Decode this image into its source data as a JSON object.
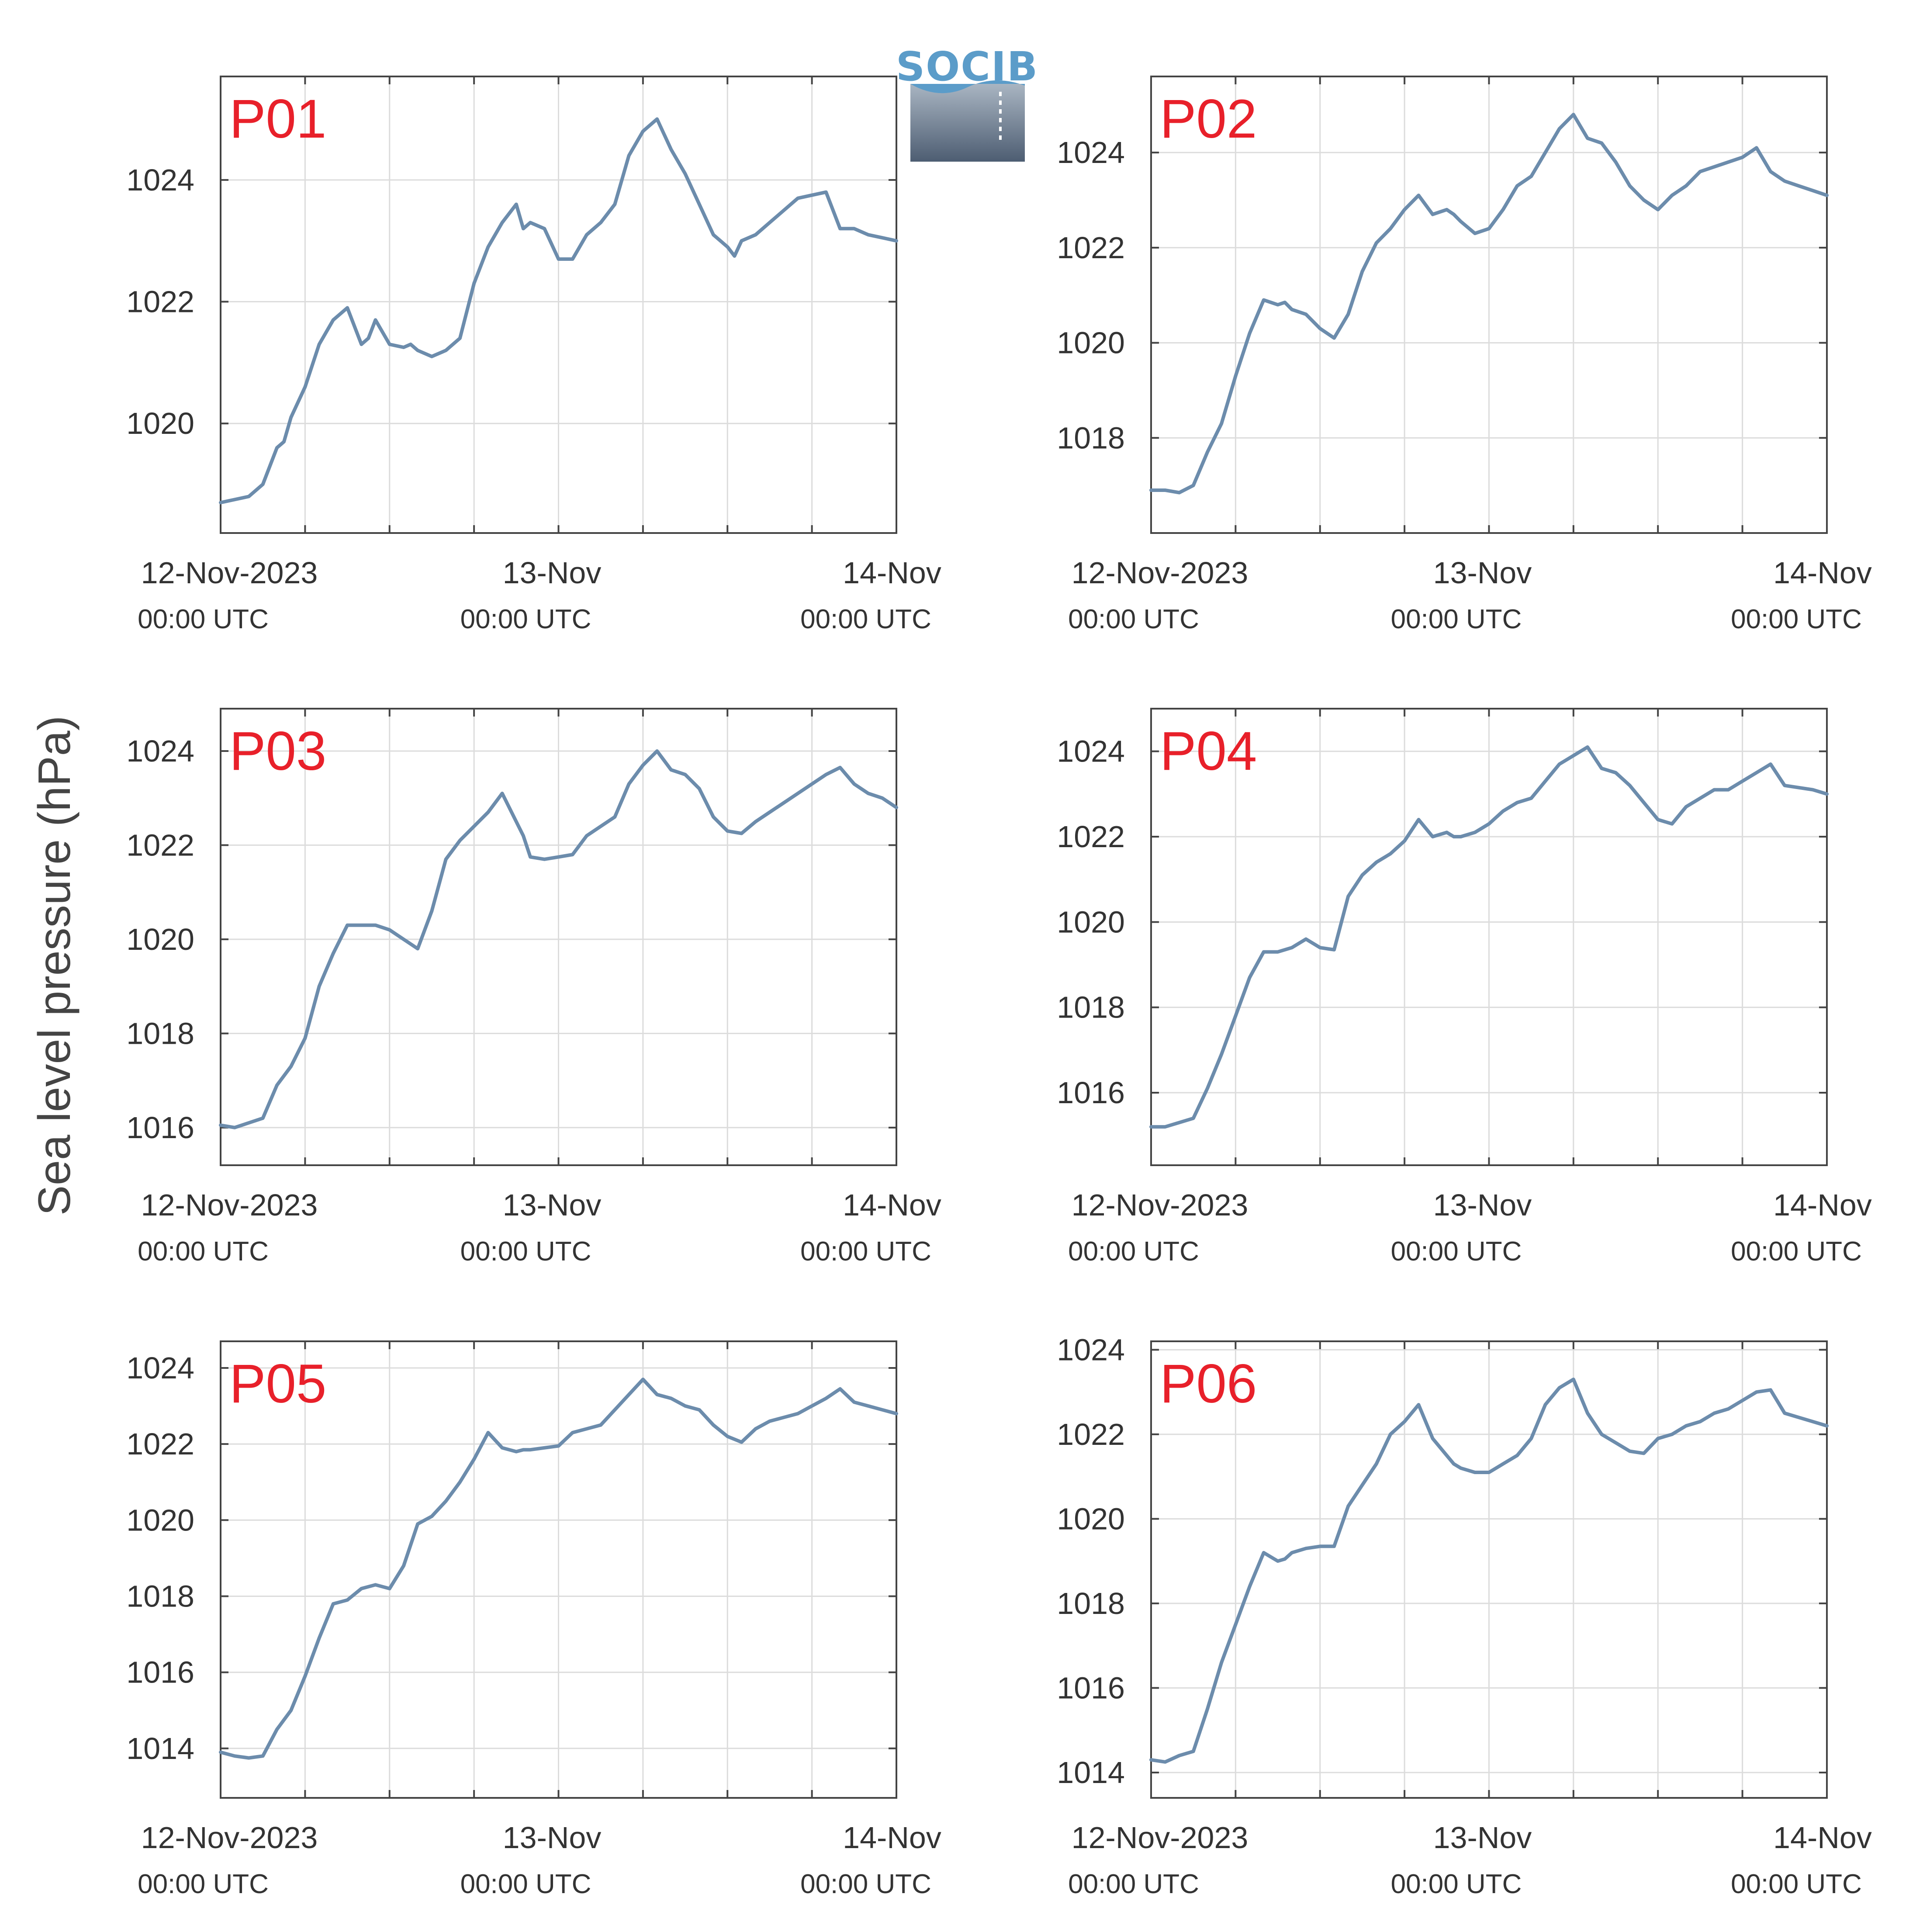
{
  "figure": {
    "ylabel": "Sea level pressure (hPa)",
    "logo": "SOCIB",
    "colors": {
      "line": "#6c8cac",
      "panel_label": "#e8202a",
      "grid": "#dcdcdc",
      "axis": "#444444",
      "text": "#333333"
    },
    "x_ticks": [
      {
        "date": "12-Nov-2023",
        "time": "00:00 UTC"
      },
      {
        "date": "13-Nov",
        "time": "00:00 UTC"
      },
      {
        "date": "14-Nov",
        "time": "00:00 UTC"
      }
    ]
  },
  "chart_data": [
    {
      "type": "line",
      "title": "P01",
      "xlabel": "",
      "ylabel": "Sea level pressure (hPa)",
      "x_unit": "hours since 12-Nov-2023 00:00 UTC",
      "xlim": [
        0,
        48
      ],
      "ylim": [
        1018.2,
        1025.7
      ],
      "yticks": [
        1020,
        1022,
        1024
      ],
      "grid": true,
      "series": [
        {
          "x": [
            0,
            1,
            2,
            3,
            4,
            4.5,
            5,
            6,
            7,
            8,
            9,
            10,
            10.5,
            11,
            12,
            13,
            13.5,
            14,
            15,
            16,
            17,
            18,
            19,
            20,
            21,
            21.5,
            22,
            23,
            24,
            25,
            26,
            27,
            28,
            29,
            30,
            31,
            32,
            33,
            34,
            35,
            36,
            36.5,
            37,
            38,
            39,
            40,
            41,
            42,
            43,
            44,
            45,
            46,
            47,
            48
          ],
          "y": [
            1018.7,
            1018.75,
            1018.8,
            1019.0,
            1019.6,
            1019.7,
            1020.1,
            1020.6,
            1021.3,
            1021.7,
            1021.9,
            1021.3,
            1021.4,
            1021.7,
            1021.3,
            1021.25,
            1021.3,
            1021.2,
            1021.1,
            1021.2,
            1021.4,
            1022.3,
            1022.9,
            1023.3,
            1023.6,
            1023.2,
            1023.3,
            1023.2,
            1022.7,
            1022.7,
            1023.1,
            1023.3,
            1023.6,
            1024.4,
            1024.8,
            1025.0,
            1024.5,
            1024.1,
            1023.6,
            1023.1,
            1022.9,
            1022.75,
            1023.0,
            1023.1,
            1023.3,
            1023.5,
            1023.7,
            1023.75,
            1023.8,
            1023.2,
            1023.2,
            1023.1,
            1023.05,
            1023.0
          ]
        }
      ]
    },
    {
      "type": "line",
      "title": "P02",
      "xlabel": "",
      "ylabel": "Sea level pressure (hPa)",
      "x_unit": "hours since 12-Nov-2023 00:00 UTC",
      "xlim": [
        0,
        48
      ],
      "ylim": [
        1016.0,
        1025.6
      ],
      "yticks": [
        1018,
        1020,
        1022,
        1024
      ],
      "grid": true,
      "series": [
        {
          "x": [
            0,
            1,
            2,
            3,
            4,
            5,
            6,
            7,
            8,
            9,
            9.5,
            10,
            11,
            12,
            13,
            14,
            15,
            15.5,
            16,
            17,
            18,
            19,
            20,
            21,
            21.5,
            22,
            23,
            24,
            25,
            26,
            27,
            28,
            29,
            30,
            31,
            32,
            33,
            34,
            35,
            36,
            37,
            38,
            39,
            40,
            41,
            42,
            43,
            44,
            45,
            46,
            47,
            48
          ],
          "y": [
            1016.9,
            1016.9,
            1016.85,
            1017.0,
            1017.7,
            1018.3,
            1019.3,
            1020.2,
            1020.9,
            1020.8,
            1020.85,
            1020.7,
            1020.6,
            1020.3,
            1020.1,
            1020.6,
            1021.5,
            1021.8,
            1022.1,
            1022.4,
            1022.8,
            1023.1,
            1022.7,
            1022.8,
            1022.7,
            1022.55,
            1022.3,
            1022.4,
            1022.8,
            1023.3,
            1023.5,
            1024.0,
            1024.5,
            1024.8,
            1024.3,
            1024.2,
            1023.8,
            1023.3,
            1023.0,
            1022.8,
            1023.1,
            1023.3,
            1023.6,
            1023.7,
            1023.8,
            1023.9,
            1024.1,
            1023.6,
            1023.4,
            1023.3,
            1023.2,
            1023.1
          ]
        }
      ]
    },
    {
      "type": "line",
      "title": "P03",
      "xlabel": "",
      "ylabel": "Sea level pressure (hPa)",
      "x_unit": "hours since 12-Nov-2023 00:00 UTC",
      "xlim": [
        0,
        48
      ],
      "ylim": [
        1015.2,
        1024.9
      ],
      "yticks": [
        1016,
        1018,
        1020,
        1022,
        1024
      ],
      "grid": true,
      "series": [
        {
          "x": [
            0,
            1,
            2,
            3,
            4,
            5,
            6,
            7,
            8,
            9,
            10,
            11,
            12,
            13,
            14,
            15,
            16,
            17,
            18,
            19,
            20,
            21,
            21.5,
            22,
            23,
            24,
            25,
            26,
            27,
            28,
            29,
            30,
            31,
            32,
            33,
            34,
            35,
            36,
            37,
            38,
            39,
            40,
            41,
            42,
            43,
            44,
            45,
            46,
            47,
            48
          ],
          "y": [
            1016.05,
            1016.0,
            1016.1,
            1016.2,
            1016.9,
            1017.3,
            1017.9,
            1019.0,
            1019.7,
            1020.3,
            1020.3,
            1020.3,
            1020.2,
            1020.0,
            1019.8,
            1020.6,
            1021.7,
            1022.1,
            1022.4,
            1022.7,
            1023.1,
            1022.5,
            1022.2,
            1021.75,
            1021.7,
            1021.75,
            1021.8,
            1022.2,
            1022.4,
            1022.6,
            1023.3,
            1023.7,
            1024.0,
            1023.6,
            1023.5,
            1023.2,
            1022.6,
            1022.3,
            1022.25,
            1022.5,
            1022.7,
            1022.9,
            1023.1,
            1023.3,
            1023.5,
            1023.65,
            1023.3,
            1023.1,
            1023.0,
            1022.8
          ]
        }
      ]
    },
    {
      "type": "line",
      "title": "P04",
      "xlabel": "",
      "ylabel": "Sea level pressure (hPa)",
      "x_unit": "hours since 12-Nov-2023 00:00 UTC",
      "xlim": [
        0,
        48
      ],
      "ylim": [
        1014.3,
        1025.0
      ],
      "yticks": [
        1016,
        1018,
        1020,
        1022,
        1024
      ],
      "grid": true,
      "series": [
        {
          "x": [
            0,
            1,
            2,
            3,
            4,
            5,
            6,
            7,
            8,
            9,
            10,
            11,
            12,
            13,
            14,
            15,
            16,
            17,
            18,
            19,
            20,
            21,
            21.5,
            22,
            23,
            24,
            25,
            26,
            27,
            28,
            29,
            30,
            31,
            32,
            33,
            34,
            35,
            36,
            37,
            38,
            39,
            40,
            41,
            42,
            43,
            44,
            45,
            46,
            47,
            48
          ],
          "y": [
            1015.2,
            1015.2,
            1015.3,
            1015.4,
            1016.1,
            1016.9,
            1017.8,
            1018.7,
            1019.3,
            1019.3,
            1019.4,
            1019.6,
            1019.4,
            1019.35,
            1020.6,
            1021.1,
            1021.4,
            1021.6,
            1021.9,
            1022.4,
            1022.0,
            1022.1,
            1022.0,
            1022.0,
            1022.1,
            1022.3,
            1022.6,
            1022.8,
            1022.9,
            1023.3,
            1023.7,
            1023.9,
            1024.1,
            1023.6,
            1023.5,
            1023.2,
            1022.8,
            1022.4,
            1022.3,
            1022.7,
            1022.9,
            1023.1,
            1023.1,
            1023.3,
            1023.5,
            1023.7,
            1023.2,
            1023.15,
            1023.1,
            1023.0
          ]
        }
      ]
    },
    {
      "type": "line",
      "title": "P05",
      "xlabel": "",
      "ylabel": "Sea level pressure (hPa)",
      "x_unit": "hours since 12-Nov-2023 00:00 UTC",
      "xlim": [
        0,
        48
      ],
      "ylim": [
        1012.7,
        1024.7
      ],
      "yticks": [
        1014,
        1016,
        1018,
        1020,
        1022,
        1024
      ],
      "grid": true,
      "series": [
        {
          "x": [
            0,
            1,
            2,
            3,
            4,
            5,
            6,
            7,
            8,
            9,
            10,
            11,
            12,
            13,
            14,
            15,
            16,
            17,
            18,
            19,
            20,
            21,
            21.5,
            22,
            23,
            24,
            25,
            26,
            27,
            28,
            29,
            30,
            31,
            32,
            33,
            34,
            35,
            36,
            37,
            38,
            39,
            40,
            41,
            42,
            43,
            44,
            45,
            46,
            47,
            48
          ],
          "y": [
            1013.9,
            1013.8,
            1013.75,
            1013.8,
            1014.5,
            1015.0,
            1015.9,
            1016.9,
            1017.8,
            1017.9,
            1018.2,
            1018.3,
            1018.2,
            1018.8,
            1019.9,
            1020.1,
            1020.5,
            1021.0,
            1021.6,
            1022.3,
            1021.9,
            1021.8,
            1021.85,
            1021.85,
            1021.9,
            1021.95,
            1022.3,
            1022.4,
            1022.5,
            1022.9,
            1023.3,
            1023.7,
            1023.3,
            1023.2,
            1023.0,
            1022.9,
            1022.5,
            1022.2,
            1022.05,
            1022.4,
            1022.6,
            1022.7,
            1022.8,
            1023.0,
            1023.2,
            1023.45,
            1023.1,
            1023.0,
            1022.9,
            1022.8
          ]
        }
      ]
    },
    {
      "type": "line",
      "title": "P06",
      "xlabel": "",
      "ylabel": "Sea level pressure (hPa)",
      "x_unit": "hours since 12-Nov-2023 00:00 UTC",
      "xlim": [
        0,
        48
      ],
      "ylim": [
        1013.4,
        1024.2
      ],
      "yticks": [
        1014,
        1016,
        1018,
        1020,
        1022,
        1024
      ],
      "grid": true,
      "series": [
        {
          "x": [
            0,
            1,
            2,
            3,
            4,
            5,
            6,
            7,
            8,
            9,
            9.5,
            10,
            11,
            12,
            13,
            14,
            15,
            16,
            17,
            18,
            19,
            20,
            21,
            21.5,
            22,
            23,
            24,
            25,
            26,
            27,
            28,
            29,
            30,
            31,
            32,
            33,
            34,
            35,
            36,
            37,
            38,
            39,
            40,
            41,
            42,
            43,
            44,
            45,
            46,
            47,
            48
          ],
          "y": [
            1014.3,
            1014.25,
            1014.4,
            1014.5,
            1015.5,
            1016.6,
            1017.5,
            1018.4,
            1019.2,
            1019.0,
            1019.05,
            1019.2,
            1019.3,
            1019.35,
            1019.35,
            1020.3,
            1020.8,
            1021.3,
            1022.0,
            1022.3,
            1022.7,
            1021.9,
            1021.5,
            1021.3,
            1021.2,
            1021.1,
            1021.1,
            1021.3,
            1021.5,
            1021.9,
            1022.7,
            1023.1,
            1023.3,
            1022.5,
            1022.0,
            1021.8,
            1021.6,
            1021.55,
            1021.9,
            1022.0,
            1022.2,
            1022.3,
            1022.5,
            1022.6,
            1022.8,
            1023.0,
            1023.05,
            1022.5,
            1022.4,
            1022.3,
            1022.2
          ]
        }
      ]
    }
  ]
}
